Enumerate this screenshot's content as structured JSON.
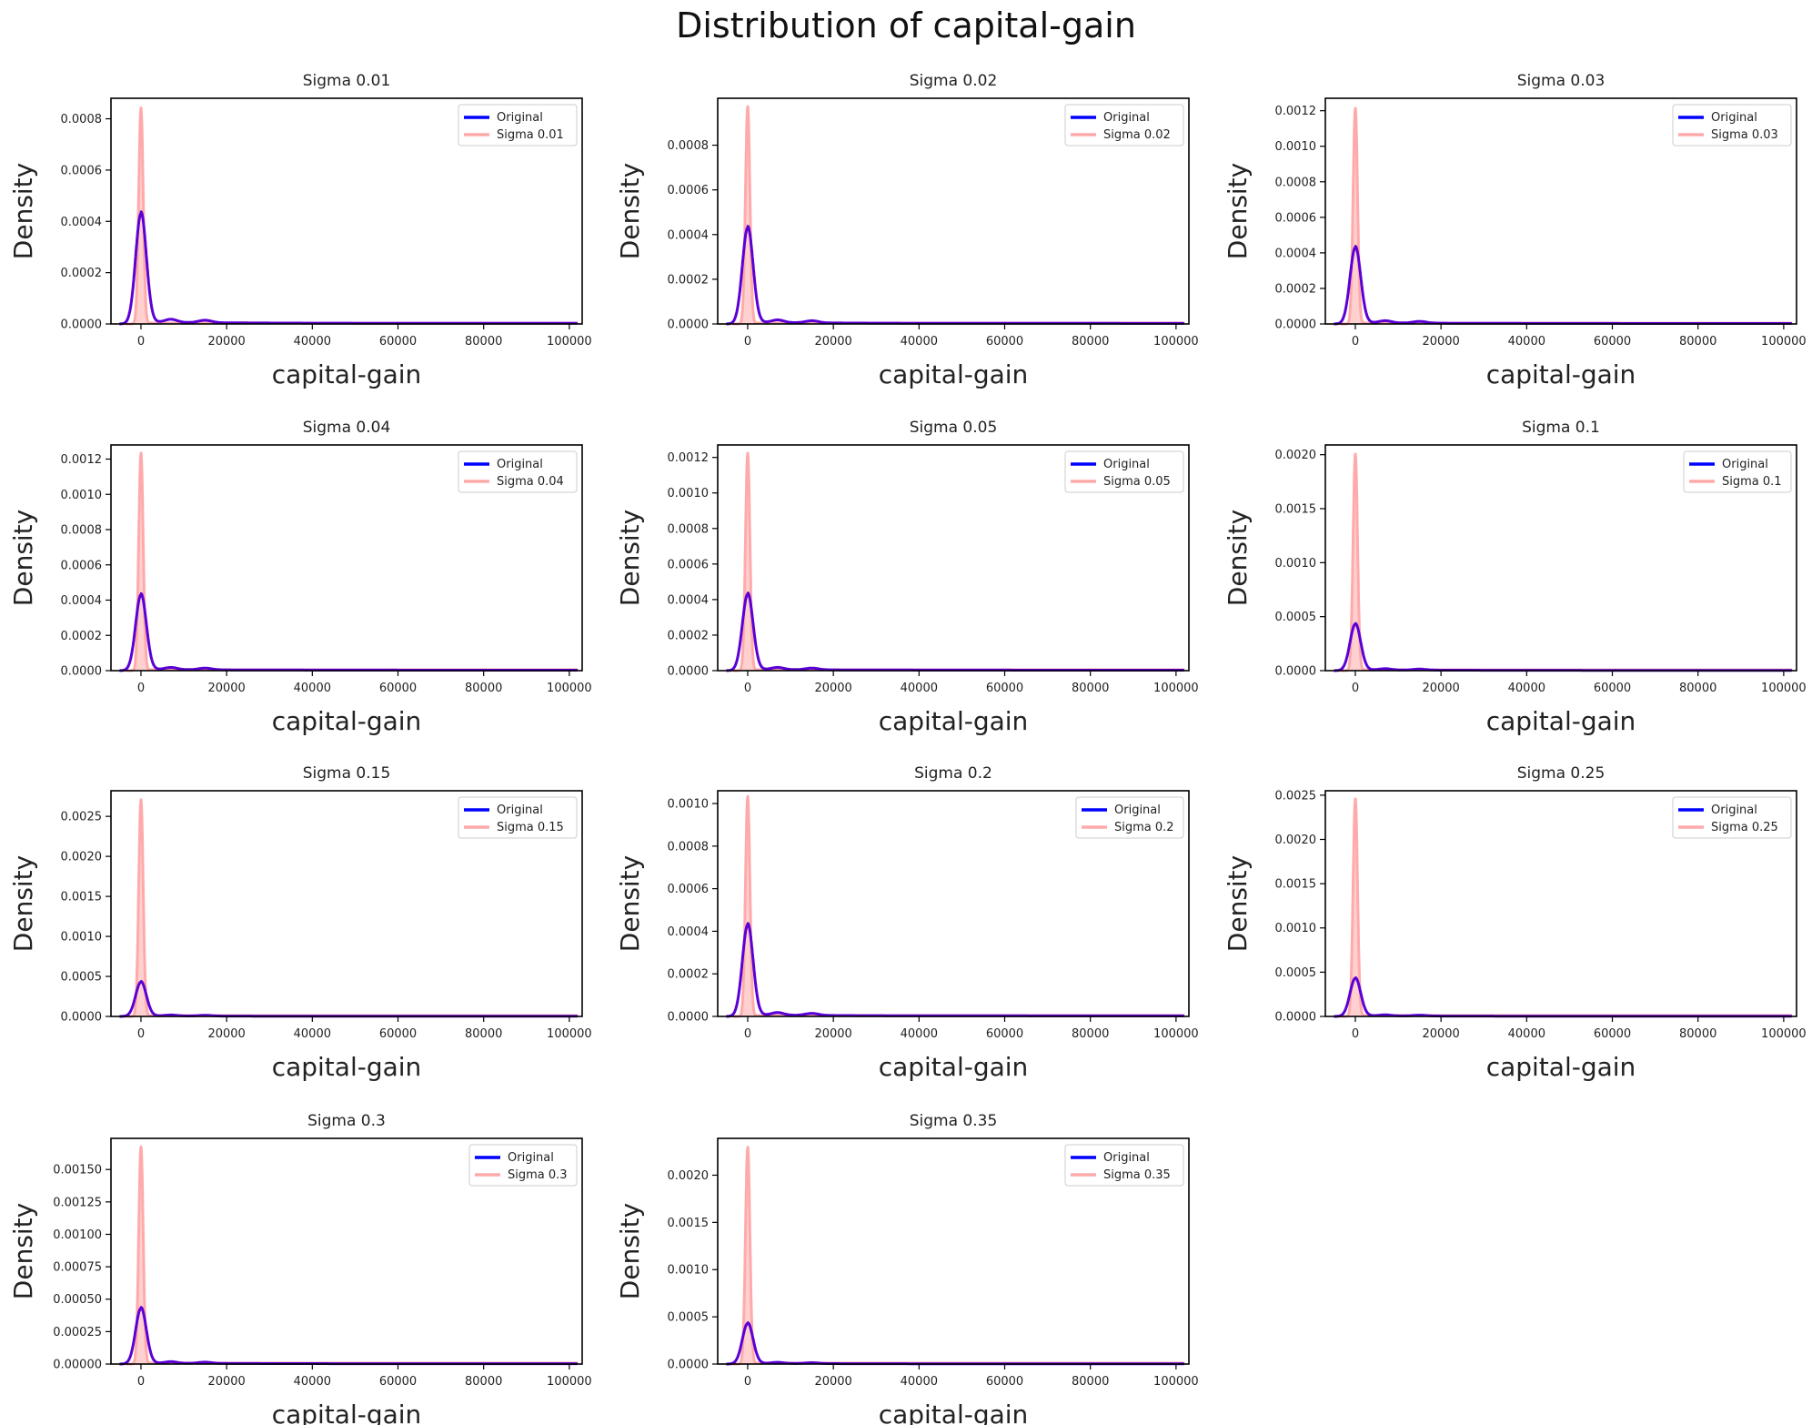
{
  "figure": {
    "title": "Distribution of capital-gain"
  },
  "colors": {
    "original": "#0000ff",
    "sigma": "#ffaaaa",
    "overlap": "#5b00d6"
  },
  "chart_data": [
    {
      "type": "line",
      "title": "Sigma 0.01",
      "xlabel": "capital-gain",
      "ylabel": "Density",
      "xlim": [
        -7000,
        103000
      ],
      "xticks": [
        0,
        20000,
        40000,
        60000,
        80000,
        100000
      ],
      "ylim": [
        0,
        0.00088
      ],
      "yticks": [
        0.0,
        0.0002,
        0.0004,
        0.0006,
        0.0008
      ],
      "ytick_labels": [
        "0.0000",
        "0.0002",
        "0.0004",
        "0.0006",
        "0.0008"
      ],
      "legend": "top-right",
      "series": [
        {
          "name": "Original",
          "peak": 0.00043
        },
        {
          "name": "Sigma 0.01",
          "peak": 0.00084
        }
      ]
    },
    {
      "type": "line",
      "title": "Sigma 0.02",
      "xlabel": "capital-gain",
      "ylabel": "Density",
      "xlim": [
        -7000,
        103000
      ],
      "xticks": [
        0,
        20000,
        40000,
        60000,
        80000,
        100000
      ],
      "ylim": [
        0,
        0.00101
      ],
      "yticks": [
        0.0,
        0.0002,
        0.0004,
        0.0006,
        0.0008
      ],
      "ytick_labels": [
        "0.0000",
        "0.0002",
        "0.0004",
        "0.0006",
        "0.0008"
      ],
      "legend": "top-right",
      "series": [
        {
          "name": "Original",
          "peak": 0.00043
        },
        {
          "name": "Sigma 0.02",
          "peak": 0.00097
        }
      ]
    },
    {
      "type": "line",
      "title": "Sigma 0.03",
      "xlabel": "capital-gain",
      "ylabel": "Density",
      "xlim": [
        -7000,
        103000
      ],
      "xticks": [
        0,
        20000,
        40000,
        60000,
        80000,
        100000
      ],
      "ylim": [
        0,
        0.00127
      ],
      "yticks": [
        0.0,
        0.0002,
        0.0004,
        0.0006,
        0.0008,
        0.001,
        0.0012
      ],
      "ytick_labels": [
        "0.0000",
        "0.0002",
        "0.0004",
        "0.0006",
        "0.0008",
        "0.0010",
        "0.0012"
      ],
      "legend": "top-right",
      "series": [
        {
          "name": "Original",
          "peak": 0.00043
        },
        {
          "name": "Sigma 0.03",
          "peak": 0.00121
        }
      ]
    },
    {
      "type": "line",
      "title": "Sigma 0.04",
      "xlabel": "capital-gain",
      "ylabel": "Density",
      "xlim": [
        -7000,
        103000
      ],
      "xticks": [
        0,
        20000,
        40000,
        60000,
        80000,
        100000
      ],
      "ylim": [
        0,
        0.00128
      ],
      "yticks": [
        0.0,
        0.0002,
        0.0004,
        0.0006,
        0.0008,
        0.001,
        0.0012
      ],
      "ytick_labels": [
        "0.0000",
        "0.0002",
        "0.0004",
        "0.0006",
        "0.0008",
        "0.0010",
        "0.0012"
      ],
      "legend": "top-right",
      "series": [
        {
          "name": "Original",
          "peak": 0.00043
        },
        {
          "name": "Sigma 0.04",
          "peak": 0.00123
        }
      ]
    },
    {
      "type": "line",
      "title": "Sigma 0.05",
      "xlabel": "capital-gain",
      "ylabel": "Density",
      "xlim": [
        -7000,
        103000
      ],
      "xticks": [
        0,
        20000,
        40000,
        60000,
        80000,
        100000
      ],
      "ylim": [
        0,
        0.00127
      ],
      "yticks": [
        0.0,
        0.0002,
        0.0004,
        0.0006,
        0.0008,
        0.001,
        0.0012
      ],
      "ytick_labels": [
        "0.0000",
        "0.0002",
        "0.0004",
        "0.0006",
        "0.0008",
        "0.0010",
        "0.0012"
      ],
      "legend": "top-right",
      "series": [
        {
          "name": "Original",
          "peak": 0.00043
        },
        {
          "name": "Sigma 0.05",
          "peak": 0.00122
        }
      ]
    },
    {
      "type": "line",
      "title": "Sigma 0.1",
      "xlabel": "capital-gain",
      "ylabel": "Density",
      "xlim": [
        -7000,
        103000
      ],
      "xticks": [
        0,
        20000,
        40000,
        60000,
        80000,
        100000
      ],
      "ylim": [
        0,
        0.00209
      ],
      "yticks": [
        0.0,
        0.0005,
        0.001,
        0.0015,
        0.002
      ],
      "ytick_labels": [
        "0.0000",
        "0.0005",
        "0.0010",
        "0.0015",
        "0.0020"
      ],
      "legend": "top-right",
      "series": [
        {
          "name": "Original",
          "peak": 0.00043
        },
        {
          "name": "Sigma 0.1",
          "peak": 0.002
        }
      ]
    },
    {
      "type": "line",
      "title": "Sigma 0.15",
      "xlabel": "capital-gain",
      "ylabel": "Density",
      "xlim": [
        -7000,
        103000
      ],
      "xticks": [
        0,
        20000,
        40000,
        60000,
        80000,
        100000
      ],
      "ylim": [
        0,
        0.00282
      ],
      "yticks": [
        0.0,
        0.0005,
        0.001,
        0.0015,
        0.002,
        0.0025
      ],
      "ytick_labels": [
        "0.0000",
        "0.0005",
        "0.0010",
        "0.0015",
        "0.0020",
        "0.0025"
      ],
      "legend": "top-right",
      "series": [
        {
          "name": "Original",
          "peak": 0.00043
        },
        {
          "name": "Sigma 0.15",
          "peak": 0.0027
        }
      ]
    },
    {
      "type": "line",
      "title": "Sigma 0.2",
      "xlabel": "capital-gain",
      "ylabel": "Density",
      "xlim": [
        -7000,
        103000
      ],
      "xticks": [
        0,
        20000,
        40000,
        60000,
        80000,
        100000
      ],
      "ylim": [
        0,
        0.00106
      ],
      "yticks": [
        0.0,
        0.0002,
        0.0004,
        0.0006,
        0.0008,
        0.001
      ],
      "ytick_labels": [
        "0.0000",
        "0.0002",
        "0.0004",
        "0.0006",
        "0.0008",
        "0.0010"
      ],
      "legend": "top-right",
      "series": [
        {
          "name": "Original",
          "peak": 0.00043
        },
        {
          "name": "Sigma 0.2",
          "peak": 0.00103
        }
      ]
    },
    {
      "type": "line",
      "title": "Sigma 0.25",
      "xlabel": "capital-gain",
      "ylabel": "Density",
      "xlim": [
        -7000,
        103000
      ],
      "xticks": [
        0,
        20000,
        40000,
        60000,
        80000,
        100000
      ],
      "ylim": [
        0,
        0.00255
      ],
      "yticks": [
        0.0,
        0.0005,
        0.001,
        0.0015,
        0.002,
        0.0025
      ],
      "ytick_labels": [
        "0.0000",
        "0.0005",
        "0.0010",
        "0.0015",
        "0.0020",
        "0.0025"
      ],
      "legend": "top-right",
      "series": [
        {
          "name": "Original",
          "peak": 0.00043
        },
        {
          "name": "Sigma 0.25",
          "peak": 0.00245
        }
      ]
    },
    {
      "type": "line",
      "title": "Sigma 0.3",
      "xlabel": "capital-gain",
      "ylabel": "Density",
      "xlim": [
        -7000,
        103000
      ],
      "xticks": [
        0,
        20000,
        40000,
        60000,
        80000,
        100000
      ],
      "ylim": [
        0,
        0.00174
      ],
      "yticks": [
        0.0,
        0.00025,
        0.0005,
        0.00075,
        0.001,
        0.00125,
        0.0015
      ],
      "ytick_labels": [
        "0.00000",
        "0.00025",
        "0.00050",
        "0.00075",
        "0.00100",
        "0.00125",
        "0.00150"
      ],
      "legend": "top-right",
      "series": [
        {
          "name": "Original",
          "peak": 0.00043
        },
        {
          "name": "Sigma 0.3",
          "peak": 0.00167
        }
      ]
    },
    {
      "type": "line",
      "title": "Sigma 0.35",
      "xlabel": "capital-gain",
      "ylabel": "Density",
      "xlim": [
        -7000,
        103000
      ],
      "xticks": [
        0,
        20000,
        40000,
        60000,
        80000,
        100000
      ],
      "ylim": [
        0,
        0.00239
      ],
      "yticks": [
        0.0,
        0.0005,
        0.001,
        0.0015,
        0.002
      ],
      "ytick_labels": [
        "0.0000",
        "0.0005",
        "0.0010",
        "0.0015",
        "0.0020"
      ],
      "legend": "top-right",
      "series": [
        {
          "name": "Original",
          "peak": 0.00043
        },
        {
          "name": "Sigma 0.35",
          "peak": 0.00229
        }
      ]
    }
  ]
}
